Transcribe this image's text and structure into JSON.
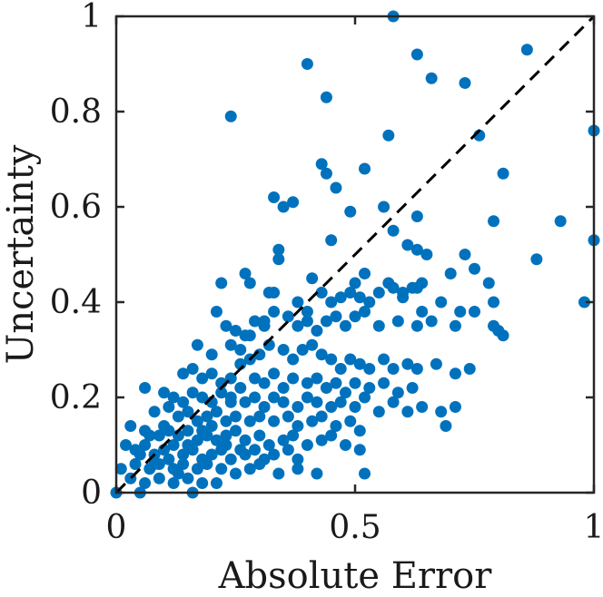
{
  "chart_data": {
    "type": "scatter",
    "xlabel": "Absolute Error",
    "ylabel": "Uncertainty",
    "xlim": [
      0,
      1
    ],
    "ylim": [
      0,
      1
    ],
    "x_ticks": [
      "0",
      "0.5",
      "1"
    ],
    "x_tick_values": [
      0,
      0.5,
      1
    ],
    "y_ticks": [
      "0",
      "0.2",
      "0.4",
      "0.6",
      "0.8",
      "1"
    ],
    "y_tick_values": [
      0,
      0.2,
      0.4,
      0.6,
      0.8,
      1
    ],
    "grid": false,
    "box": true,
    "reference_line": {
      "style": "dashed",
      "from": [
        0,
        0
      ],
      "to": [
        1,
        1
      ],
      "color": "#000000"
    },
    "marker_color": "#0072BD",
    "series": [
      {
        "points": [
          [
            0.0,
            0.0
          ],
          [
            0.58,
            1.0
          ],
          [
            0.4,
            0.9
          ],
          [
            0.63,
            0.92
          ],
          [
            0.66,
            0.87
          ],
          [
            0.73,
            0.86
          ],
          [
            0.86,
            0.93
          ],
          [
            0.44,
            0.83
          ],
          [
            0.24,
            0.79
          ],
          [
            0.57,
            0.75
          ],
          [
            0.76,
            0.75
          ],
          [
            1.0,
            0.76
          ],
          [
            0.43,
            0.69
          ],
          [
            0.44,
            0.67
          ],
          [
            0.52,
            0.68
          ],
          [
            0.46,
            0.64
          ],
          [
            0.33,
            0.62
          ],
          [
            0.35,
            0.6
          ],
          [
            0.37,
            0.61
          ],
          [
            0.56,
            0.6
          ],
          [
            0.81,
            0.67
          ],
          [
            0.49,
            0.59
          ],
          [
            0.63,
            0.58
          ],
          [
            0.79,
            0.57
          ],
          [
            0.93,
            0.57
          ],
          [
            0.45,
            0.53
          ],
          [
            0.58,
            0.55
          ],
          [
            0.61,
            0.52
          ],
          [
            0.63,
            0.51
          ],
          [
            0.65,
            0.5
          ],
          [
            0.73,
            0.5
          ],
          [
            1.0,
            0.53
          ],
          [
            0.34,
            0.51
          ],
          [
            0.34,
            0.49
          ],
          [
            0.88,
            0.49
          ],
          [
            0.27,
            0.46
          ],
          [
            0.28,
            0.44
          ],
          [
            0.22,
            0.44
          ],
          [
            0.41,
            0.45
          ],
          [
            0.52,
            0.46
          ],
          [
            0.5,
            0.44
          ],
          [
            0.57,
            0.44
          ],
          [
            0.6,
            0.42
          ],
          [
            0.63,
            0.43
          ],
          [
            0.64,
            0.44
          ],
          [
            0.7,
            0.46
          ],
          [
            0.75,
            0.47
          ],
          [
            0.78,
            0.44
          ],
          [
            0.98,
            0.4
          ],
          [
            0.32,
            0.42
          ],
          [
            0.33,
            0.42
          ],
          [
            0.38,
            0.4
          ],
          [
            0.4,
            0.38
          ],
          [
            0.43,
            0.42
          ],
          [
            0.45,
            0.4
          ],
          [
            0.47,
            0.41
          ],
          [
            0.49,
            0.42
          ],
          [
            0.51,
            0.41
          ],
          [
            0.53,
            0.4
          ],
          [
            0.55,
            0.42
          ],
          [
            0.58,
            0.43
          ],
          [
            0.6,
            0.41
          ],
          [
            0.62,
            0.43
          ],
          [
            0.64,
            0.38
          ],
          [
            0.68,
            0.4
          ],
          [
            0.72,
            0.38
          ],
          [
            0.75,
            0.38
          ],
          [
            0.79,
            0.4
          ],
          [
            0.21,
            0.38
          ],
          [
            0.23,
            0.35
          ],
          [
            0.25,
            0.34
          ],
          [
            0.27,
            0.33
          ],
          [
            0.29,
            0.36
          ],
          [
            0.31,
            0.35
          ],
          [
            0.33,
            0.38
          ],
          [
            0.36,
            0.37
          ],
          [
            0.38,
            0.35
          ],
          [
            0.4,
            0.36
          ],
          [
            0.42,
            0.34
          ],
          [
            0.44,
            0.36
          ],
          [
            0.46,
            0.37
          ],
          [
            0.48,
            0.35
          ],
          [
            0.5,
            0.37
          ],
          [
            0.52,
            0.38
          ],
          [
            0.55,
            0.35
          ],
          [
            0.59,
            0.36
          ],
          [
            0.63,
            0.35
          ],
          [
            0.66,
            0.36
          ],
          [
            0.71,
            0.35
          ],
          [
            0.79,
            0.35
          ],
          [
            0.8,
            0.34
          ],
          [
            0.81,
            0.33
          ],
          [
            0.17,
            0.31
          ],
          [
            0.2,
            0.29
          ],
          [
            0.24,
            0.31
          ],
          [
            0.26,
            0.3
          ],
          [
            0.28,
            0.28
          ],
          [
            0.3,
            0.29
          ],
          [
            0.32,
            0.31
          ],
          [
            0.35,
            0.3
          ],
          [
            0.37,
            0.28
          ],
          [
            0.39,
            0.3
          ],
          [
            0.41,
            0.31
          ],
          [
            0.43,
            0.29
          ],
          [
            0.45,
            0.28
          ],
          [
            0.47,
            0.26
          ],
          [
            0.49,
            0.28
          ],
          [
            0.51,
            0.27
          ],
          [
            0.53,
            0.26
          ],
          [
            0.56,
            0.28
          ],
          [
            0.58,
            0.26
          ],
          [
            0.61,
            0.27
          ],
          [
            0.63,
            0.26
          ],
          [
            0.67,
            0.27
          ],
          [
            0.71,
            0.25
          ],
          [
            0.74,
            0.26
          ],
          [
            0.14,
            0.25
          ],
          [
            0.16,
            0.26
          ],
          [
            0.18,
            0.24
          ],
          [
            0.2,
            0.25
          ],
          [
            0.22,
            0.23
          ],
          [
            0.24,
            0.24
          ],
          [
            0.26,
            0.22
          ],
          [
            0.29,
            0.24
          ],
          [
            0.31,
            0.23
          ],
          [
            0.33,
            0.25
          ],
          [
            0.35,
            0.22
          ],
          [
            0.37,
            0.24
          ],
          [
            0.4,
            0.23
          ],
          [
            0.42,
            0.24
          ],
          [
            0.44,
            0.22
          ],
          [
            0.46,
            0.23
          ],
          [
            0.48,
            0.21
          ],
          [
            0.5,
            0.23
          ],
          [
            0.53,
            0.22
          ],
          [
            0.56,
            0.23
          ],
          [
            0.59,
            0.21
          ],
          [
            0.62,
            0.22
          ],
          [
            0.06,
            0.22
          ],
          [
            0.1,
            0.21
          ],
          [
            0.12,
            0.2
          ],
          [
            0.14,
            0.19
          ],
          [
            0.16,
            0.21
          ],
          [
            0.18,
            0.2
          ],
          [
            0.2,
            0.19
          ],
          [
            0.22,
            0.21
          ],
          [
            0.24,
            0.2
          ],
          [
            0.27,
            0.19
          ],
          [
            0.29,
            0.2
          ],
          [
            0.31,
            0.18
          ],
          [
            0.33,
            0.2
          ],
          [
            0.35,
            0.19
          ],
          [
            0.38,
            0.18
          ],
          [
            0.4,
            0.2
          ],
          [
            0.42,
            0.19
          ],
          [
            0.45,
            0.18
          ],
          [
            0.47,
            0.19
          ],
          [
            0.5,
            0.18
          ],
          [
            0.52,
            0.2
          ],
          [
            0.55,
            0.17
          ],
          [
            0.58,
            0.19
          ],
          [
            0.61,
            0.17
          ],
          [
            0.64,
            0.18
          ],
          [
            0.68,
            0.17
          ],
          [
            0.71,
            0.18
          ],
          [
            0.08,
            0.17
          ],
          [
            0.11,
            0.18
          ],
          [
            0.13,
            0.16
          ],
          [
            0.15,
            0.17
          ],
          [
            0.17,
            0.15
          ],
          [
            0.19,
            0.16
          ],
          [
            0.21,
            0.17
          ],
          [
            0.23,
            0.15
          ],
          [
            0.25,
            0.16
          ],
          [
            0.28,
            0.15
          ],
          [
            0.3,
            0.16
          ],
          [
            0.33,
            0.15
          ],
          [
            0.36,
            0.16
          ],
          [
            0.38,
            0.14
          ],
          [
            0.41,
            0.15
          ],
          [
            0.43,
            0.16
          ],
          [
            0.46,
            0.14
          ],
          [
            0.49,
            0.15
          ],
          [
            0.51,
            0.13
          ],
          [
            0.69,
            0.14
          ],
          [
            0.03,
            0.14
          ],
          [
            0.06,
            0.13
          ],
          [
            0.09,
            0.12
          ],
          [
            0.11,
            0.13
          ],
          [
            0.13,
            0.12
          ],
          [
            0.15,
            0.13
          ],
          [
            0.17,
            0.11
          ],
          [
            0.19,
            0.12
          ],
          [
            0.21,
            0.11
          ],
          [
            0.23,
            0.12
          ],
          [
            0.25,
            0.13
          ],
          [
            0.27,
            0.11
          ],
          [
            0.3,
            0.12
          ],
          [
            0.32,
            0.1
          ],
          [
            0.35,
            0.11
          ],
          [
            0.37,
            0.12
          ],
          [
            0.4,
            0.1
          ],
          [
            0.43,
            0.11
          ],
          [
            0.45,
            0.12
          ],
          [
            0.48,
            0.1
          ],
          [
            0.02,
            0.1
          ],
          [
            0.04,
            0.09
          ],
          [
            0.06,
            0.1
          ],
          [
            0.08,
            0.08
          ],
          [
            0.1,
            0.09
          ],
          [
            0.12,
            0.1
          ],
          [
            0.14,
            0.08
          ],
          [
            0.16,
            0.09
          ],
          [
            0.18,
            0.07
          ],
          [
            0.2,
            0.08
          ],
          [
            0.22,
            0.09
          ],
          [
            0.24,
            0.07
          ],
          [
            0.27,
            0.08
          ],
          [
            0.29,
            0.09
          ],
          [
            0.31,
            0.07
          ],
          [
            0.33,
            0.08
          ],
          [
            0.36,
            0.09
          ],
          [
            0.38,
            0.07
          ],
          [
            0.51,
            0.09
          ],
          [
            0.01,
            0.05
          ],
          [
            0.04,
            0.06
          ],
          [
            0.07,
            0.05
          ],
          [
            0.09,
            0.06
          ],
          [
            0.12,
            0.05
          ],
          [
            0.14,
            0.06
          ],
          [
            0.17,
            0.05
          ],
          [
            0.19,
            0.06
          ],
          [
            0.22,
            0.05
          ],
          [
            0.25,
            0.04
          ],
          [
            0.28,
            0.05
          ],
          [
            0.3,
            0.06
          ],
          [
            0.34,
            0.04
          ],
          [
            0.38,
            0.05
          ],
          [
            0.42,
            0.04
          ],
          [
            0.52,
            0.04
          ],
          [
            0.03,
            0.03
          ],
          [
            0.06,
            0.02
          ],
          [
            0.09,
            0.03
          ],
          [
            0.12,
            0.02
          ],
          [
            0.15,
            0.03
          ],
          [
            0.18,
            0.02
          ],
          [
            0.21,
            0.02
          ],
          [
            0.05,
            0.0
          ],
          [
            0.16,
            0.0
          ],
          [
            0.08,
            0.06
          ],
          [
            0.11,
            0.07
          ],
          [
            0.13,
            0.04
          ],
          [
            0.1,
            0.14
          ],
          [
            0.07,
            0.12
          ],
          [
            0.05,
            0.08
          ],
          [
            0.15,
            0.1
          ],
          [
            0.18,
            0.13
          ],
          [
            0.2,
            0.14
          ],
          [
            0.23,
            0.1
          ],
          [
            0.26,
            0.09
          ],
          [
            0.24,
            0.19
          ],
          [
            0.26,
            0.27
          ],
          [
            0.28,
            0.33
          ],
          [
            0.31,
            0.36
          ]
        ]
      }
    ]
  }
}
